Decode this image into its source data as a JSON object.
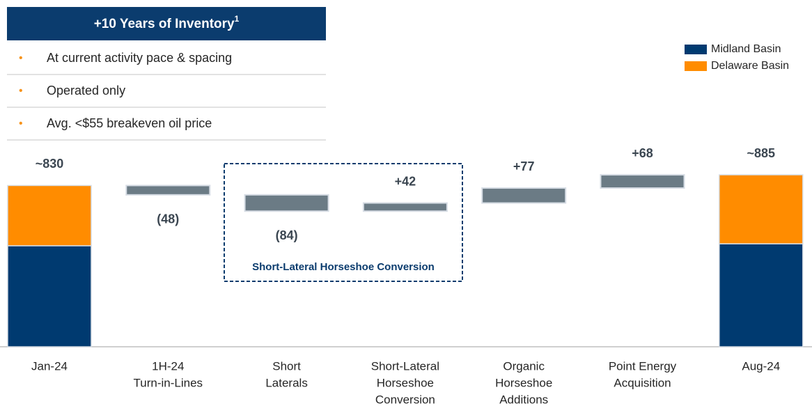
{
  "header": {
    "title": "+10 Years of Inventory",
    "footnote_mark": "1"
  },
  "bullets": [
    "At current activity pace & spacing",
    "Operated only",
    "Avg. <$55 breakeven oil price"
  ],
  "chart_data": {
    "type": "waterfall",
    "categories": [
      [
        "Jan-24"
      ],
      [
        "1H-24",
        "Turn-in-Lines"
      ],
      [
        "Short",
        "Laterals"
      ],
      [
        "Short-Lateral",
        "Horseshoe",
        "Conversion"
      ],
      [
        "Organic",
        "Horseshoe",
        "Additions"
      ],
      [
        "Point Energy",
        "Acquisition"
      ],
      [
        "Aug-24"
      ]
    ],
    "values": [
      830,
      -48,
      -84,
      42,
      77,
      68,
      885
    ],
    "value_labels": [
      "~830",
      "(48)",
      "(84)",
      "+42",
      "+77",
      "+68",
      "~885"
    ],
    "totals": [
      true,
      false,
      false,
      false,
      false,
      false,
      true
    ],
    "step_color": "#6b7b85",
    "series": [
      {
        "name": "Midland Basin",
        "color": "#003a70",
        "values": [
          520,
          null,
          null,
          null,
          null,
          null,
          530
        ]
      },
      {
        "name": "Delaware Basin",
        "color": "#ff8c00",
        "values": [
          310,
          null,
          null,
          null,
          null,
          null,
          355
        ]
      }
    ],
    "annotation": "Short-Lateral Horseshoe Conversion",
    "legend": "top-right"
  }
}
